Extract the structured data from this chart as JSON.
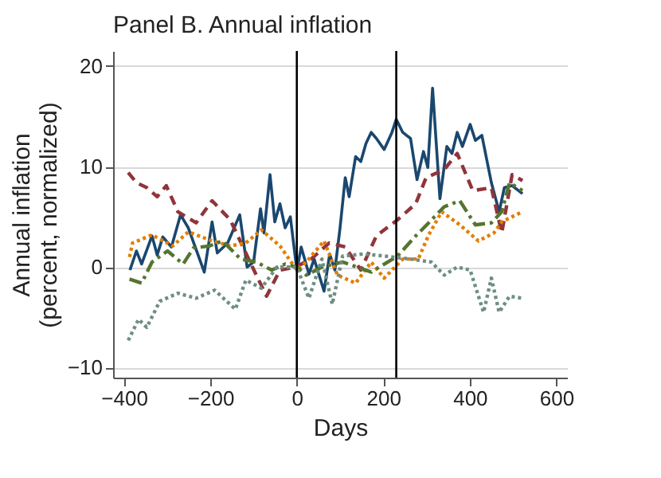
{
  "chart_data": {
    "type": "line",
    "title": "Panel B. Annual inflation",
    "xlabel": "Days",
    "ylabel": "Annual inflation\n(percent, normalized)",
    "xlim": [
      -425,
      625
    ],
    "ylim": [
      -11,
      21.5
    ],
    "xticks": [
      -400,
      -200,
      0,
      200,
      400,
      600
    ],
    "yticks": [
      -10,
      0,
      10,
      20
    ],
    "grid": "y",
    "legend": false,
    "ref_lines": [
      {
        "axis": "x",
        "value": 0,
        "color": "#000000"
      },
      {
        "axis": "x",
        "value": 230,
        "color": "#000000"
      }
    ],
    "series": [
      {
        "color": "#1a476f",
        "line_style": "solid",
        "x": [
          -386,
          -371,
          -359,
          -335,
          -323,
          -310,
          -290,
          -269,
          -251,
          -214,
          -196,
          -184,
          -160,
          -132,
          -115,
          -100,
          -84,
          -76,
          -62,
          -51,
          -39,
          -27,
          -15,
          0,
          3,
          10,
          28,
          40,
          63,
          76,
          88,
          100,
          112,
          121,
          136,
          148,
          160,
          172,
          184,
          202,
          220,
          230,
          245,
          263,
          278,
          293,
          303,
          314,
          331,
          347,
          359,
          371,
          383,
          401,
          413,
          428,
          450,
          468,
          480,
          498,
          522
        ],
        "values": [
          -0.3,
          1.6,
          0.3,
          3.1,
          1.2,
          3.0,
          2.0,
          5.2,
          3.9,
          -0.5,
          4.5,
          1.4,
          2.4,
          5.2,
          0,
          0.5,
          5.8,
          3.4,
          9.2,
          4.5,
          6.3,
          3.9,
          5.0,
          -0.3,
          0.3,
          2.0,
          -0.7,
          0.8,
          -2.4,
          1.3,
          -0.3,
          3.9,
          8.9,
          7.0,
          11.0,
          10.5,
          12.3,
          13.4,
          12.8,
          11.7,
          13.4,
          14.7,
          13.4,
          12.8,
          8.7,
          11.5,
          9.9,
          17.8,
          6.8,
          12.0,
          11.3,
          13.4,
          12.0,
          14.2,
          12.6,
          13.1,
          8.4,
          5.5,
          7.9,
          8.1,
          7.3
        ]
      },
      {
        "color": "#90353b",
        "line_style": "dashed",
        "x": [
          -390,
          -371,
          -347,
          -323,
          -302,
          -275,
          -233,
          -196,
          -154,
          -106,
          -70,
          -39,
          -3,
          33,
          75,
          112,
          148,
          184,
          233,
          275,
          299,
          341,
          371,
          407,
          450,
          474,
          498,
          522
        ],
        "values": [
          9.4,
          8.4,
          7.9,
          7.0,
          8.1,
          5.5,
          4.4,
          6.6,
          4.7,
          0.3,
          -2.9,
          -0.3,
          0,
          0.8,
          2.4,
          2.0,
          -0.3,
          3.1,
          4.7,
          6.3,
          8.9,
          9.7,
          11.3,
          7.6,
          7.9,
          3.4,
          9.2,
          8.6
        ]
      },
      {
        "color": "#e37e00",
        "line_style": "dotted",
        "x": [
          -387,
          -380,
          -335,
          -287,
          -251,
          -202,
          -154,
          -118,
          -82,
          -39,
          0,
          22,
          63,
          94,
          136,
          172,
          202,
          245,
          281,
          305,
          335,
          377,
          420,
          456,
          474,
          522
        ],
        "values": [
          1.0,
          2.4,
          3.2,
          2.1,
          3.5,
          2.7,
          2.1,
          2.4,
          3.7,
          2.1,
          -0.3,
          0.5,
          2.6,
          -0.8,
          -1.6,
          0.5,
          -1.1,
          0.8,
          0.8,
          3.2,
          5.5,
          4.2,
          2.6,
          3.4,
          4.5,
          5.5
        ]
      },
      {
        "color": "#55752f",
        "line_style": "dashdot",
        "x": [
          -387,
          -359,
          -335,
          -299,
          -263,
          -239,
          -202,
          -172,
          -130,
          -94,
          -58,
          -27,
          0,
          22,
          58,
          106,
          172,
          233,
          275,
          305,
          341,
          377,
          413,
          450,
          474,
          492,
          522
        ],
        "values": [
          -1.2,
          -1.6,
          0.5,
          1.6,
          0.3,
          1.9,
          2.1,
          2.6,
          0.8,
          0.5,
          -0.3,
          0.3,
          0,
          -0.8,
          0,
          0.5,
          -0.5,
          1.1,
          3.1,
          4.4,
          6.0,
          6.6,
          4.2,
          4.4,
          5.5,
          8.4,
          7.6
        ]
      },
      {
        "color": "#6e8e84",
        "line_style": "dotted",
        "x": [
          -390,
          -366,
          -347,
          -317,
          -275,
          -233,
          -190,
          -142,
          -118,
          -82,
          -46,
          0,
          28,
          58,
          82,
          106,
          154,
          202,
          263,
          311,
          341,
          371,
          401,
          432,
          450,
          468,
          492,
          522
        ],
        "values": [
          -7.3,
          -5.2,
          -6.0,
          -3.4,
          -2.6,
          -3.1,
          -2.3,
          -4.2,
          -1.3,
          -2.1,
          0,
          0,
          -3.1,
          0.8,
          -3.7,
          1.1,
          1.3,
          1.1,
          0.8,
          0.5,
          -0.8,
          0,
          -0.3,
          -4.5,
          -1.1,
          -4.5,
          -2.9,
          -3.1
        ]
      }
    ]
  }
}
